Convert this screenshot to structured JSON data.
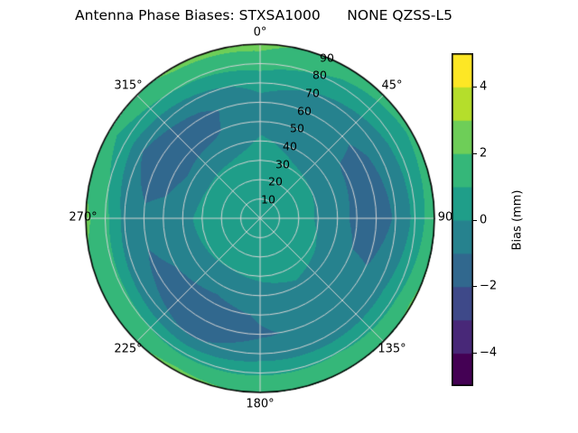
{
  "chart_data": {
    "type": "heatmap",
    "projection": "polar",
    "title": "Antenna Phase Biases: STXSA1000      NONE QZSS-L5",
    "theta_direction": "clockwise",
    "theta_zero": "north",
    "theta_tick_angles_deg": [
      0,
      45,
      90,
      135,
      180,
      225,
      270,
      315
    ],
    "theta_tick_labels": [
      "0°",
      "45°",
      "90",
      "135°",
      "180°",
      "225°",
      "270°",
      "315°"
    ],
    "r_tick_values": [
      10,
      20,
      30,
      40,
      50,
      60,
      70,
      80,
      90
    ],
    "r_tick_labels": [
      "10",
      "20",
      "30",
      "40",
      "50",
      "60",
      "70",
      "80",
      "90"
    ],
    "r_max": 90,
    "grid_on": true,
    "grid_color": "#d4d4d4",
    "spine_color": "#000000",
    "azimuth_deg": [
      0,
      30,
      60,
      90,
      120,
      150,
      180,
      210,
      240,
      270,
      300,
      330
    ],
    "zenith_deg": [
      0,
      10,
      20,
      30,
      40,
      50,
      60,
      70,
      80,
      90
    ],
    "bias_grid_mm": [
      [
        0.6,
        0.6,
        0.6,
        0.6,
        0.6,
        0.6,
        0.6,
        0.6,
        0.6,
        0.6,
        0.6,
        0.6
      ],
      [
        0.6,
        0.5,
        0.5,
        0.5,
        0.5,
        0.6,
        0.5,
        0.5,
        0.5,
        0.6,
        0.6,
        0.6
      ],
      [
        0.5,
        0.4,
        0.3,
        0.3,
        0.4,
        0.5,
        0.4,
        0.3,
        0.4,
        0.5,
        0.5,
        0.5
      ],
      [
        0.3,
        0.1,
        0.0,
        -0.1,
        0.1,
        0.2,
        0.1,
        0.0,
        0.1,
        0.2,
        0.1,
        0.2
      ],
      [
        0.1,
        -0.2,
        -0.5,
        -0.6,
        -0.3,
        -0.1,
        -0.3,
        -0.6,
        -0.4,
        -0.2,
        -0.7,
        -0.5
      ],
      [
        -0.2,
        -0.5,
        -1.1,
        -1.3,
        -0.8,
        -0.4,
        -0.9,
        -1.4,
        -1.0,
        -0.6,
        -1.5,
        -1.2
      ],
      [
        -0.3,
        -0.6,
        -1.2,
        -1.4,
        -0.9,
        -0.8,
        -1.1,
        -1.6,
        -1.2,
        -0.8,
        -1.6,
        -1.3
      ],
      [
        0.3,
        -0.2,
        -0.7,
        -0.9,
        -0.4,
        -0.6,
        -0.5,
        -1.1,
        -0.6,
        -0.3,
        -1.0,
        -0.4
      ],
      [
        1.4,
        0.8,
        0.4,
        0.3,
        0.8,
        1.0,
        0.9,
        0.8,
        1.2,
        1.3,
        0.6,
        1.1
      ],
      [
        2.3,
        1.4,
        1.2,
        1.8,
        2.2,
        1.3,
        1.9,
        2.3,
        1.5,
        2.2,
        1.3,
        2.2
      ]
    ],
    "colorbar": {
      "label": "Bias (mm)",
      "value_range": [
        -5,
        5
      ],
      "tick_values": [
        -4,
        -2,
        0,
        2,
        4
      ],
      "tick_labels": [
        "−4",
        "−2",
        "0",
        "2",
        "4"
      ],
      "levels": [
        -5,
        -4,
        -3,
        -2,
        -1,
        0,
        1,
        2,
        3,
        4,
        5
      ],
      "colormap_name": "viridis",
      "colormap_bands": [
        "#440154",
        "#482878",
        "#3e4989",
        "#31688e",
        "#26828e",
        "#1f9e89",
        "#35b779",
        "#6ece58",
        "#b5de2b",
        "#fde725"
      ]
    }
  }
}
